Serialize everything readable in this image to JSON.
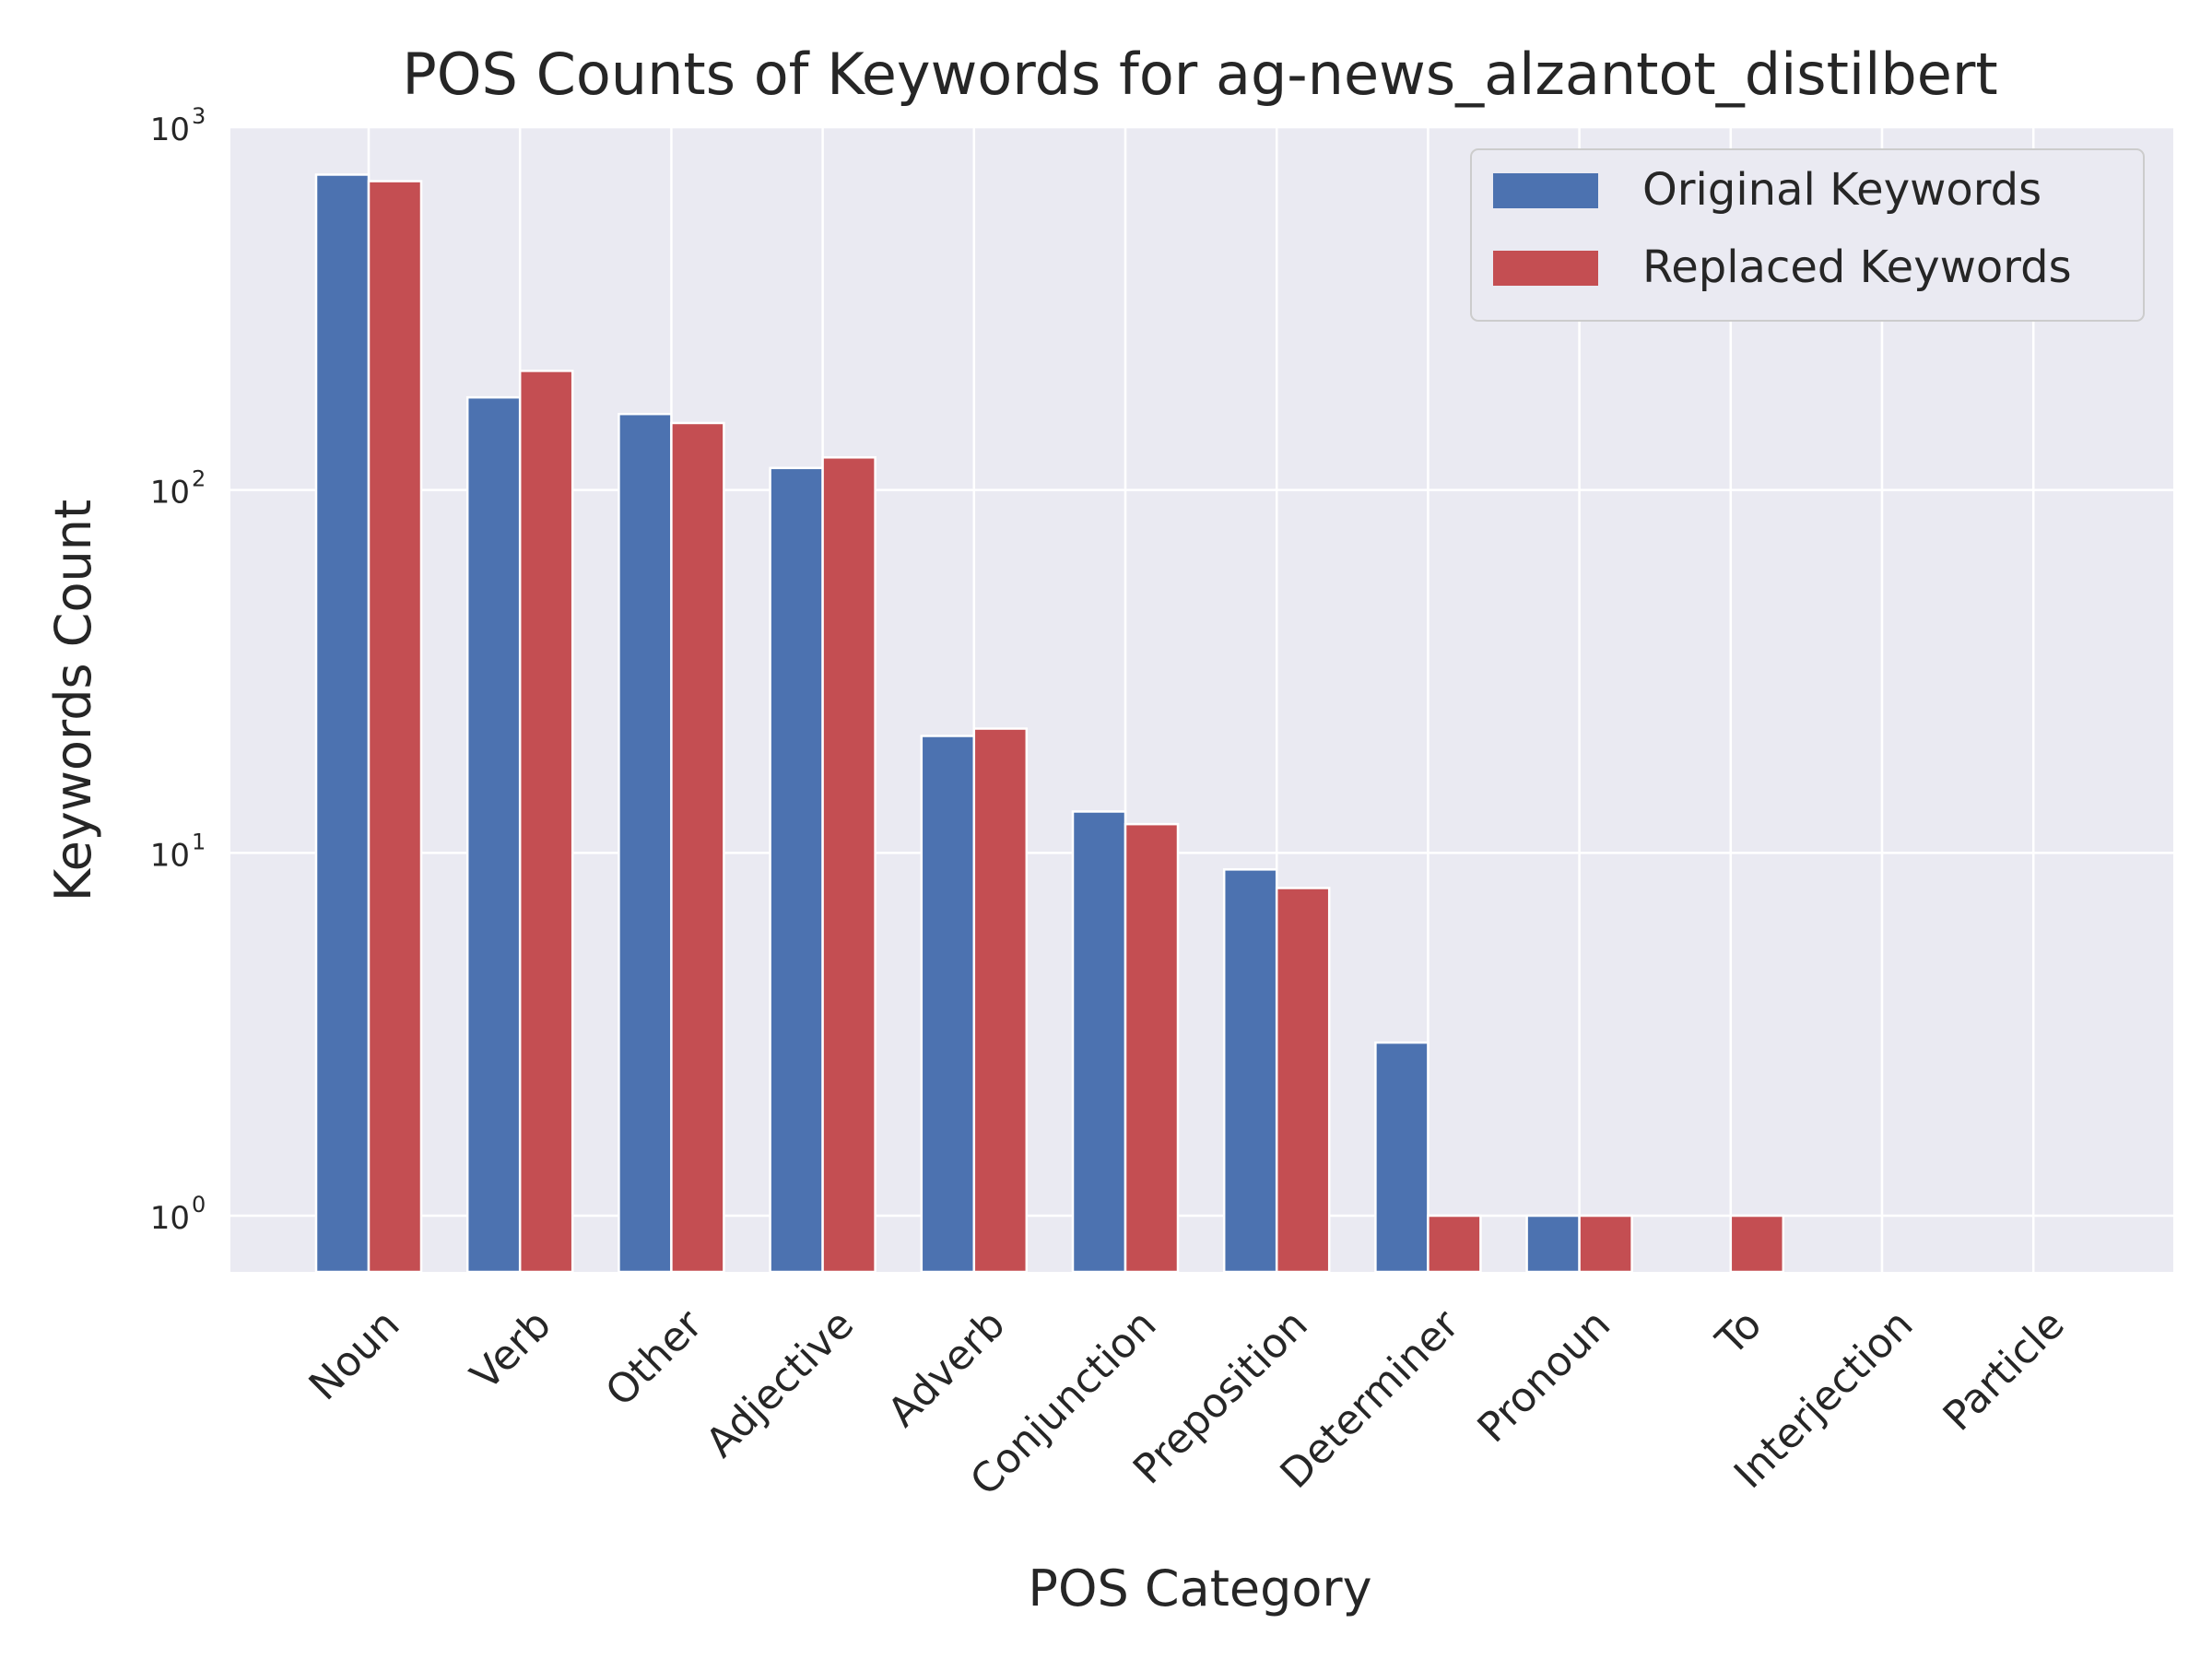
{
  "chart_data": {
    "type": "bar",
    "title": "POS Counts of Keywords for ag-news_alzantot_distilbert",
    "xlabel": "POS Category",
    "ylabel": "Keywords Count",
    "yscale": "log",
    "ylim": [
      0.7,
      1000
    ],
    "yticks": [
      {
        "base": "10",
        "exp": "0",
        "value": 1
      },
      {
        "base": "10",
        "exp": "1",
        "value": 10
      },
      {
        "base": "10",
        "exp": "2",
        "value": 100
      },
      {
        "base": "10",
        "exp": "3",
        "value": 1000
      }
    ],
    "grid": true,
    "legend_position": "top-right",
    "categories": [
      "Noun",
      "Verb",
      "Other",
      "Adjective",
      "Adverb",
      "Conjunction",
      "Preposition",
      "Determiner",
      "Pronoun",
      "To",
      "Interjection",
      "Particle"
    ],
    "series": [
      {
        "name": "Original Keywords",
        "color": "#4c72b0",
        "values": [
          740,
          180,
          162,
          115,
          21,
          13,
          9,
          3,
          1,
          0,
          0,
          0
        ]
      },
      {
        "name": "Replaced Keywords",
        "color": "#c44e52",
        "values": [
          710,
          213,
          153,
          123,
          22,
          12,
          8,
          1,
          1,
          1,
          0,
          0
        ]
      }
    ]
  },
  "colors": {
    "plot_background": "#eaeaf2",
    "grid": "#ffffff",
    "text": "#262626"
  }
}
